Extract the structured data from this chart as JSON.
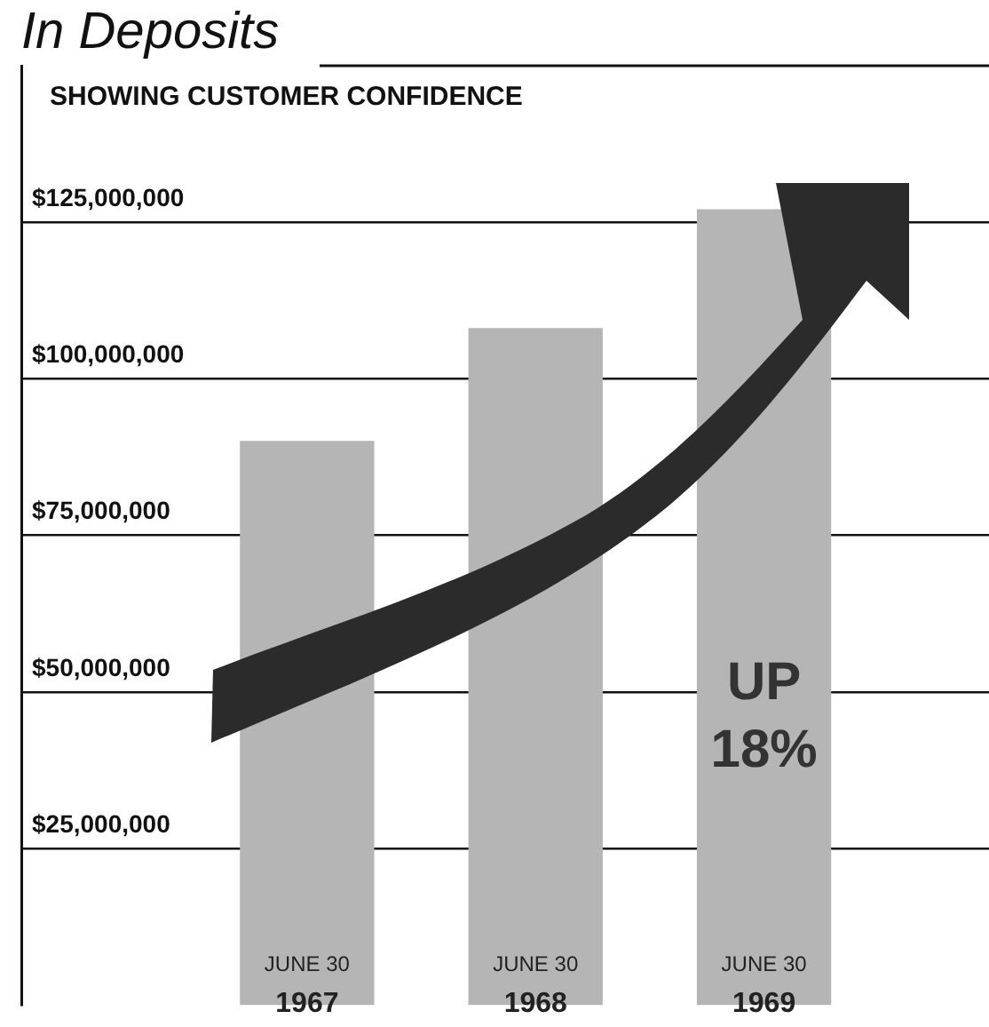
{
  "chart_data": {
    "type": "bar",
    "title": "In Deposits",
    "subtitle": "SHOWING CUSTOMER CONFIDENCE",
    "categories": [
      "JUNE 30\n1967",
      "JUNE 30\n1968",
      "JUNE 30\n1969"
    ],
    "values": [
      90000000,
      108000000,
      127000000
    ],
    "color": "#b5b5b5",
    "ylim": [
      0,
      150000000
    ],
    "yticks": [
      {
        "value": 25000000,
        "label": "$25,000,000"
      },
      {
        "value": 50000000,
        "label": "$50,000,000"
      },
      {
        "value": 75000000,
        "label": "$75,000,000"
      },
      {
        "value": 100000000,
        "label": "$100,000,000"
      },
      {
        "value": 125000000,
        "label": "$125,000,000"
      }
    ],
    "grid": "y",
    "legend": false,
    "annotations": [
      "UP\n18%"
    ]
  }
}
